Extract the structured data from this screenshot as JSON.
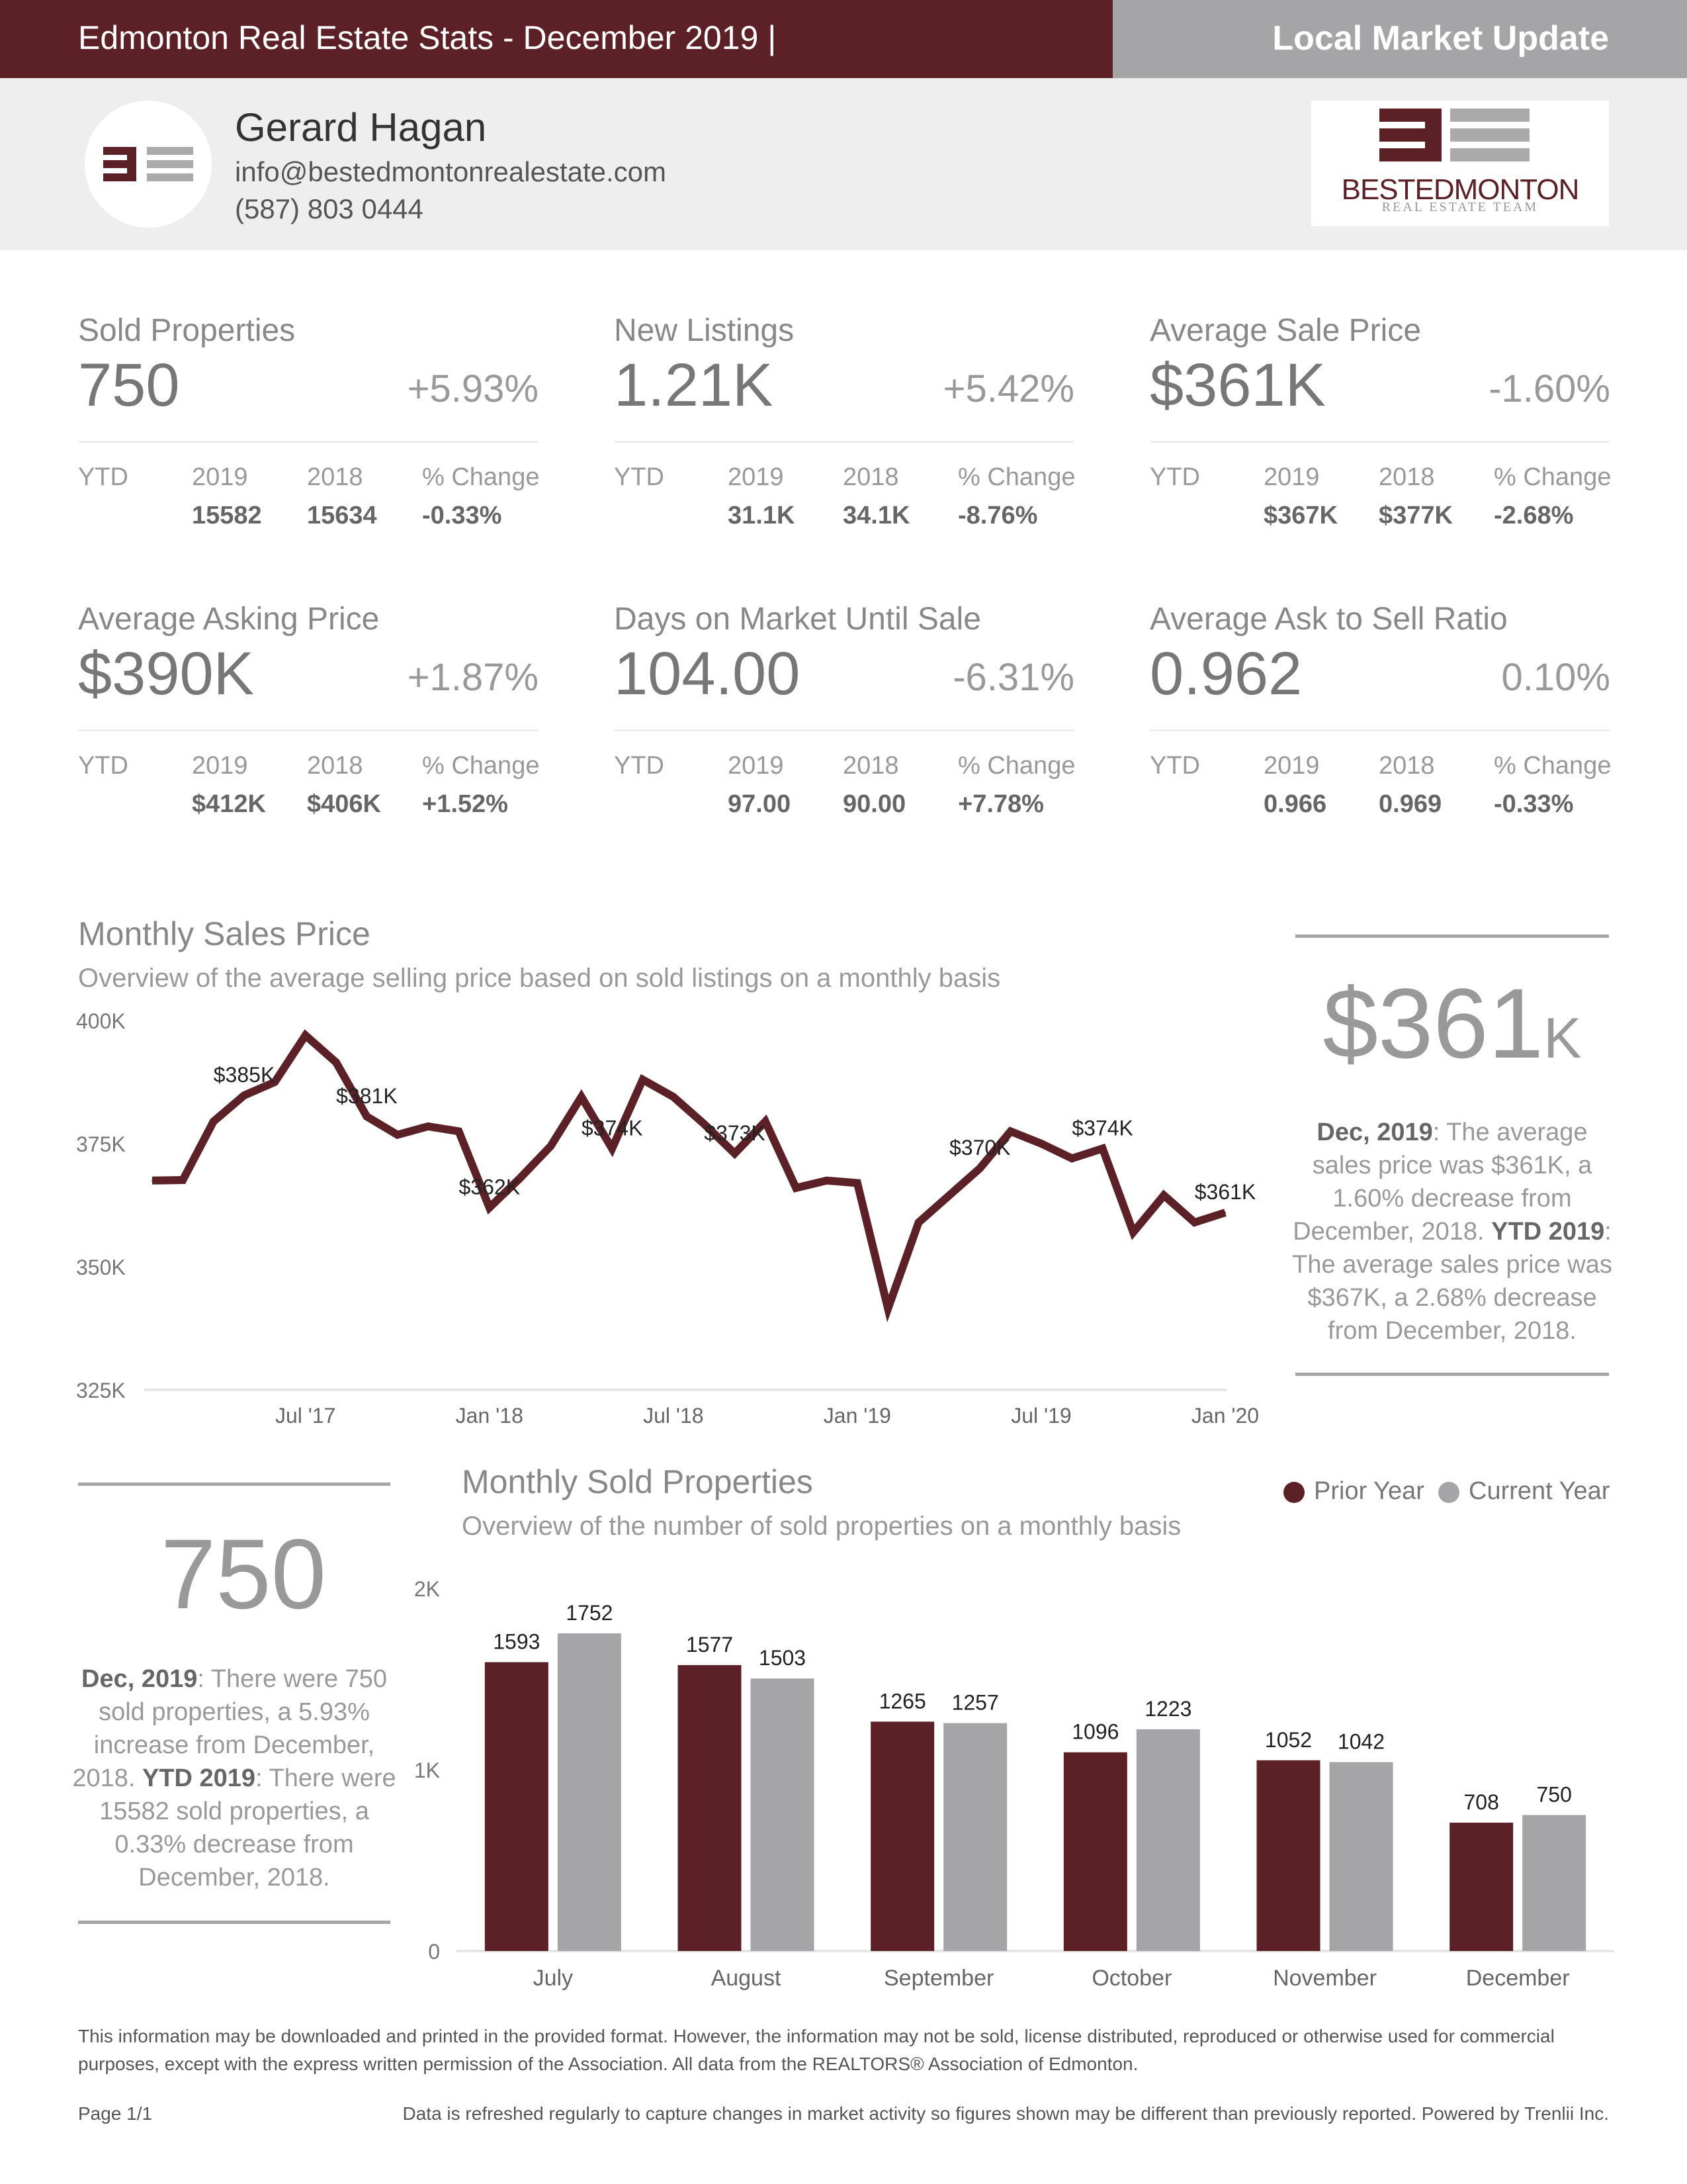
{
  "header": {
    "title": "Edmonton Real Estate Stats - December 2019 |",
    "right_label": "Local Market Update"
  },
  "agent": {
    "name": "Gerard Hagan",
    "email": "info@bestedmontonrealestate.com",
    "phone": "(587) 803 0444"
  },
  "brand": {
    "name": "BESTEDMONTON",
    "tagline": "REAL ESTATE TEAM"
  },
  "ytd_headers": {
    "ytd": "YTD",
    "y2019": "2019",
    "y2018": "2018",
    "change": "% Change"
  },
  "stats": [
    {
      "title": "Sold Properties",
      "value": "750",
      "change": "+5.93%",
      "ytd_2019": "15582",
      "ytd_2018": "15634",
      "ytd_change": "-0.33%"
    },
    {
      "title": "New Listings",
      "value": "1.21K",
      "change": "+5.42%",
      "ytd_2019": "31.1K",
      "ytd_2018": "34.1K",
      "ytd_change": "-8.76%"
    },
    {
      "title": "Average Sale Price",
      "value": "$361K",
      "change": "-1.60%",
      "ytd_2019": "$367K",
      "ytd_2018": "$377K",
      "ytd_change": "-2.68%"
    },
    {
      "title": "Average Asking Price",
      "value": "$390K",
      "change": "+1.87%",
      "ytd_2019": "$412K",
      "ytd_2018": "$406K",
      "ytd_change": "+1.52%"
    },
    {
      "title": "Days on Market Until Sale",
      "value": "104.00",
      "change": "-6.31%",
      "ytd_2019": "97.00",
      "ytd_2018": "90.00",
      "ytd_change": "+7.78%"
    },
    {
      "title": "Average Ask to Sell Ratio",
      "value": "0.962",
      "change": "0.10%",
      "ytd_2019": "0.966",
      "ytd_2018": "0.969",
      "ytd_change": "-0.33%"
    }
  ],
  "price_section": {
    "title": "Monthly Sales Price",
    "subtitle": "Overview of the average selling price based on sold listings on a monthly basis"
  },
  "price_callout": {
    "big_number": "$361",
    "big_suffix": "K",
    "lead": "Dec, 2019",
    "text1": ": The average sales price was $361K, a 1.60% decrease from December, 2018. ",
    "lead2": "YTD 2019",
    "text2": ": The average sales price was $367K, a 2.68% decrease from December, 2018."
  },
  "sold_section": {
    "title": "Monthly Sold Properties",
    "subtitle": "Overview of the number of sold properties on a monthly basis"
  },
  "sold_callout": {
    "big_number": "750",
    "lead": "Dec, 2019",
    "text1": ": There were 750 sold properties, a 5.93% increase from December, 2018. ",
    "lead2": "YTD 2019",
    "text2": ": There were 15582 sold properties, a 0.33% decrease from December, 2018."
  },
  "legend": {
    "prior": "Prior Year",
    "current": "Current Year"
  },
  "chart_data": [
    {
      "type": "line",
      "title": "Monthly Sales Price",
      "ylim": [
        325000,
        400000
      ],
      "y_ticks": [
        {
          "value": 400000,
          "label": "400K"
        },
        {
          "value": 375000,
          "label": "375K"
        },
        {
          "value": 350000,
          "label": "350K"
        },
        {
          "value": 325000,
          "label": "325K"
        }
      ],
      "x_ticks": [
        {
          "index": 5,
          "label": "Jul '17"
        },
        {
          "index": 11,
          "label": "Jan '18"
        },
        {
          "index": 17,
          "label": "Jul '18"
        },
        {
          "index": 23,
          "label": "Jan '19"
        },
        {
          "index": 29,
          "label": "Jul '19"
        },
        {
          "index": 35,
          "label": "Jan '20"
        }
      ],
      "color": "#5c2127",
      "series": [
        {
          "values": [
            367500,
            367600,
            379500,
            384800,
            387500,
            397000,
            391500,
            380500,
            376800,
            378500,
            377500,
            362000,
            368000,
            374500,
            384500,
            374000,
            388000,
            384500,
            379000,
            373000,
            379500,
            366000,
            367500,
            367000,
            341500,
            359000,
            364500,
            370000,
            377500,
            375000,
            372000,
            374000,
            357000,
            364500,
            359000,
            361000
          ],
          "labels": [
            {
              "index": 3,
              "text": "$385K"
            },
            {
              "index": 7,
              "text": "$381K"
            },
            {
              "index": 11,
              "text": "$362K"
            },
            {
              "index": 15,
              "text": "$374K"
            },
            {
              "index": 19,
              "text": "$373K"
            },
            {
              "index": 27,
              "text": "$370K"
            },
            {
              "index": 31,
              "text": "$374K"
            },
            {
              "index": 35,
              "text": "$361K"
            }
          ]
        }
      ]
    },
    {
      "type": "bar",
      "title": "Monthly Sold Properties",
      "categories": [
        "July",
        "August",
        "September",
        "October",
        "November",
        "December"
      ],
      "ylim": [
        0,
        2000
      ],
      "y_ticks": [
        {
          "value": 2000,
          "label": "2K"
        },
        {
          "value": 1000,
          "label": "1K"
        },
        {
          "value": 0,
          "label": "0"
        }
      ],
      "series": [
        {
          "name": "Prior Year",
          "color": "#5c2127",
          "values": [
            1593,
            1577,
            1265,
            1096,
            1052,
            708
          ]
        },
        {
          "name": "Current Year",
          "color": "#a5a5a7",
          "values": [
            1752,
            1503,
            1257,
            1223,
            1042,
            750
          ]
        }
      ]
    }
  ],
  "footer": {
    "disclaimer": "This information may be downloaded and printed in the provided format. However, the information may not be sold, license distributed, reproduced or otherwise used for commercial purposes, except with the express written permission of the Association. All data from the REALTORS® Association of Edmonton.",
    "page": "Page 1/1",
    "refresh_note": "Data is refreshed regularly to capture changes in market activity so figures shown may be different than previously reported. Powered by Trenlii Inc."
  }
}
